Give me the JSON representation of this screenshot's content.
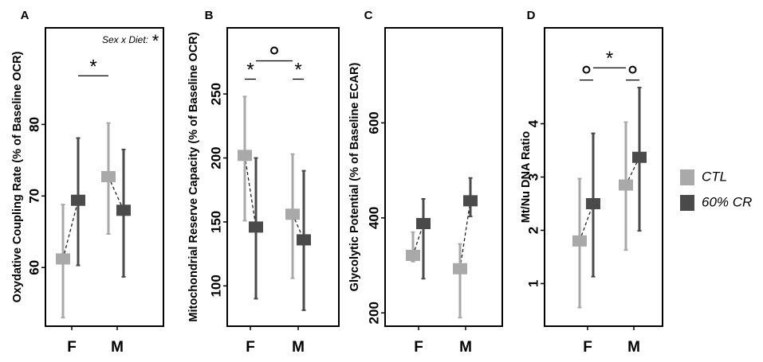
{
  "colors": {
    "ctl": "#a9a9a9",
    "cr": "#4a4a4a",
    "frame": "#000000",
    "text": "#000000"
  },
  "legend": {
    "items": [
      {
        "label": "CTL",
        "color": "#a9a9a9"
      },
      {
        "label": "60% CR",
        "color": "#4a4a4a"
      }
    ]
  },
  "chart_data": [
    {
      "panel": "A",
      "type": "scatter",
      "ylabel": "Oxydative Coupling Rate (% of Baseline OCR)",
      "categories": [
        "F",
        "M"
      ],
      "ylim": [
        51.8,
        93.5
      ],
      "yticks": [
        60,
        70,
        80
      ],
      "series": [
        {
          "name": "CTL",
          "mean": [
            61.2,
            72.7
          ],
          "lower": [
            53.0,
            64.7
          ],
          "upper": [
            68.8,
            80.2
          ]
        },
        {
          "name": "60% CR",
          "mean": [
            69.4,
            68.0
          ],
          "lower": [
            60.3,
            58.7
          ],
          "upper": [
            78.1,
            76.5
          ]
        }
      ],
      "annotations": [
        {
          "type": "bracket",
          "from": [
            0,
            "CR"
          ],
          "to": [
            1,
            "CTL"
          ],
          "y": 86.8,
          "symbol": "*"
        },
        {
          "type": "text",
          "text": "Sex x Diet:",
          "symbol": "*"
        }
      ]
    },
    {
      "panel": "B",
      "type": "scatter",
      "ylabel": "Mitochondrial Reserve Capacity (% of Baseline OCR)",
      "categories": [
        "F",
        "M"
      ],
      "ylim": [
        68.5,
        301.7
      ],
      "yticks": [
        100,
        150,
        200,
        250
      ],
      "series": [
        {
          "name": "CTL",
          "mean": [
            202,
            156
          ],
          "lower": [
            151,
            106
          ],
          "upper": [
            248,
            203
          ]
        },
        {
          "name": "60% CR",
          "mean": [
            146,
            136
          ],
          "lower": [
            90,
            81
          ],
          "upper": [
            200,
            190
          ]
        }
      ],
      "annotations": [
        {
          "type": "bracket",
          "from": [
            0,
            "CTL"
          ],
          "to": [
            0,
            "CR"
          ],
          "y": 261.6,
          "symbol": "*"
        },
        {
          "type": "bracket",
          "from": [
            1,
            "CTL"
          ],
          "to": [
            1,
            "CR"
          ],
          "y": 261.6,
          "symbol": "*"
        },
        {
          "type": "bracket",
          "from": [
            0,
            "CR"
          ],
          "to": [
            1,
            "CTL"
          ],
          "y": 275.9,
          "symbol": "o"
        }
      ]
    },
    {
      "panel": "C",
      "type": "scatter",
      "ylabel": "Glycolytic Potential (% of Baseline ECAR)",
      "categories": [
        "F",
        "M"
      ],
      "ylim": [
        172,
        800
      ],
      "yticks": [
        200,
        400,
        600
      ],
      "series": [
        {
          "name": "CTL",
          "mean": [
            321,
            293
          ],
          "lower": [
            308,
            190
          ],
          "upper": [
            370,
            345
          ]
        },
        {
          "name": "60% CR",
          "mean": [
            388,
            436
          ],
          "lower": [
            272,
            403
          ],
          "upper": [
            440,
            484
          ]
        }
      ]
    },
    {
      "panel": "D",
      "type": "scatter",
      "ylabel": "Mt/Nu DNA Ratio",
      "categories": [
        "F",
        "M"
      ],
      "ylim": [
        0.2,
        5.8
      ],
      "yticks": [
        1,
        2,
        3,
        4
      ],
      "series": [
        {
          "name": "CTL",
          "mean": [
            1.8,
            2.85
          ],
          "lower": [
            0.55,
            1.63
          ],
          "upper": [
            2.97,
            4.03
          ]
        },
        {
          "name": "60% CR",
          "mean": [
            2.5,
            3.37
          ],
          "lower": [
            1.13,
            1.99
          ],
          "upper": [
            3.82,
            4.68
          ]
        }
      ],
      "annotations": [
        {
          "type": "bracket",
          "from": [
            0,
            "CTL"
          ],
          "to": [
            0,
            "CR"
          ],
          "y": 4.82,
          "symbol": "o"
        },
        {
          "type": "bracket",
          "from": [
            1,
            "CTL"
          ],
          "to": [
            1,
            "CR"
          ],
          "y": 4.82,
          "symbol": "o"
        },
        {
          "type": "bracket",
          "from": [
            0,
            "CR"
          ],
          "to": [
            1,
            "CTL"
          ],
          "y": 5.05,
          "symbol": "*"
        }
      ]
    }
  ]
}
